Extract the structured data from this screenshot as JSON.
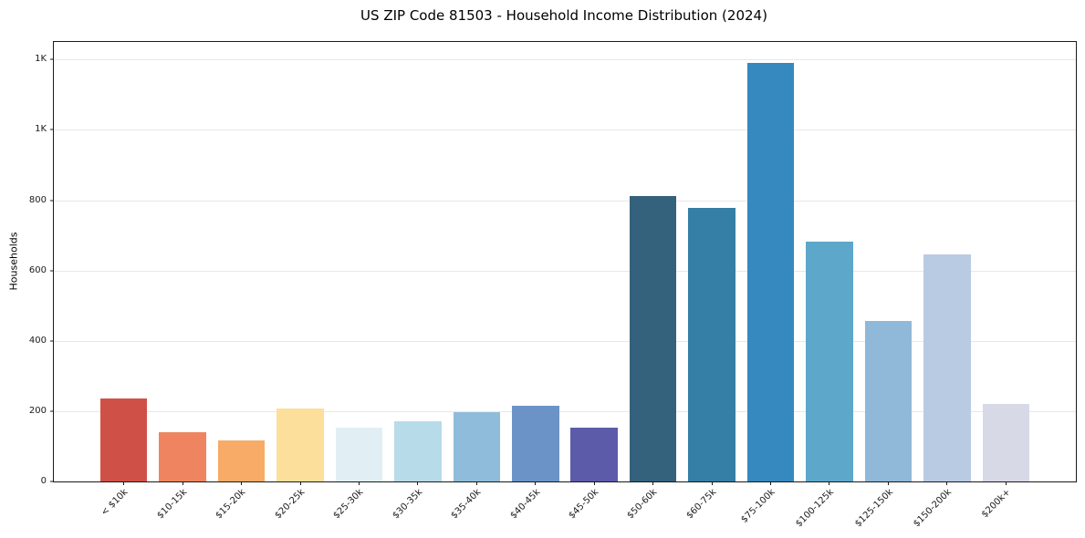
{
  "chart_data": {
    "type": "bar",
    "title": "US ZIP Code 81503 - Household Income Distribution (2024)",
    "xlabel": "",
    "ylabel": "Households",
    "categories": [
      "< $10k",
      "$10-15k",
      "$15-20k",
      "$20-25k",
      "$25-30k",
      "$30-35k",
      "$35-40k",
      "$40-45k",
      "$45-50k",
      "$50-60k",
      "$60-75k",
      "$75-100k",
      "$100-125k",
      "$125-150k",
      "$150-200k",
      "$200k+"
    ],
    "values": [
      237,
      140,
      118,
      208,
      152,
      171,
      198,
      214,
      152,
      812,
      777,
      1190,
      681,
      457,
      645,
      220
    ],
    "bar_colors": [
      "#cf5046",
      "#ef8560",
      "#f7ab67",
      "#fbdf9b",
      "#e1eff4",
      "#b7dbe9",
      "#90bcdb",
      "#6b93c8",
      "#5c5baa",
      "#34617c",
      "#357ea6",
      "#3589bf",
      "#5da7ca",
      "#90b8d8",
      "#b9cae3",
      "#d8d9e7"
    ],
    "ylim": [
      0,
      1250
    ],
    "yticks": {
      "values": [
        0,
        200,
        400,
        600,
        800,
        1000,
        1200
      ],
      "labels": [
        "0",
        "200",
        "400",
        "600",
        "800",
        "1K",
        "1K"
      ]
    },
    "grid": "horizontal",
    "legend": "none",
    "bar_width_fraction": 0.8,
    "x_outer_margin": 1.19,
    "xtick_rotation_deg": 45
  },
  "colors": {
    "background": "#ffffff",
    "spine": "#1a1a1a",
    "grid": "#e8e8e8",
    "tick_text": "#1a1a1a",
    "title_text": "#000000"
  }
}
